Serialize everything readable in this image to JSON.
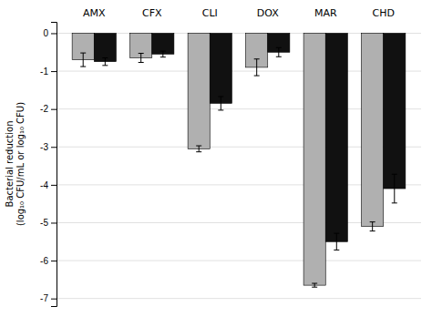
{
  "chart_data": {
    "type": "bar",
    "categories": [
      "AMX",
      "CFX",
      "CLI",
      "DOX",
      "MAR",
      "CHD"
    ],
    "series": [
      {
        "color": "#b0b0b0",
        "values": [
          -0.7,
          -0.65,
          -3.05,
          -0.9,
          -6.65,
          -5.1
        ],
        "errors": [
          0.18,
          0.12,
          0.08,
          0.22,
          0.05,
          0.12
        ]
      },
      {
        "color": "#111111",
        "values": [
          -0.75,
          -0.55,
          -1.85,
          -0.5,
          -5.5,
          -4.1
        ],
        "errors": [
          0.1,
          0.08,
          0.18,
          0.12,
          0.22,
          0.38
        ]
      }
    ],
    "ylabel": "Bacterial reduction\n(log₁₀ CFU/mL or log₁₀ CFU)",
    "ylim": [
      -7.2,
      0.3
    ],
    "yticks": [
      0,
      -1,
      -2,
      -3,
      -4,
      -5,
      -6,
      -7
    ],
    "grid": true
  }
}
